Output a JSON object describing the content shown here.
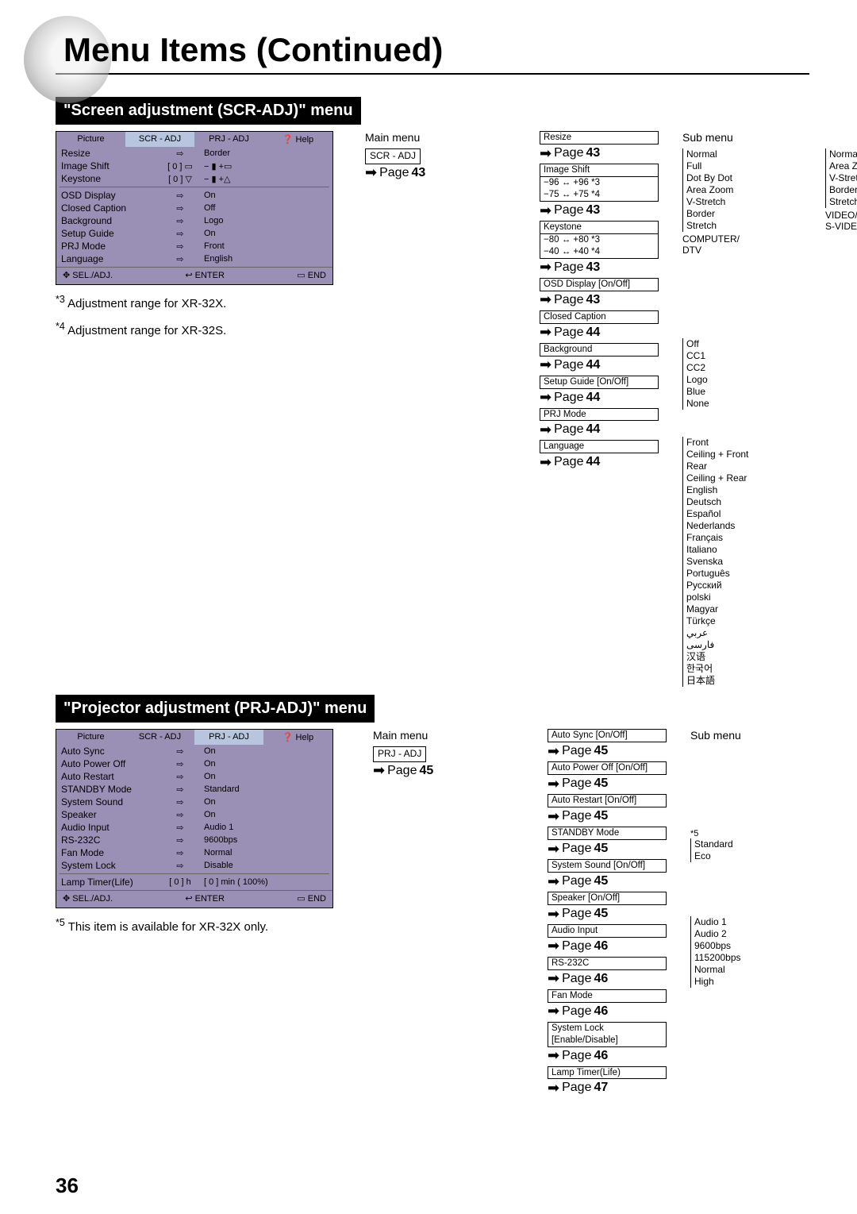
{
  "page_number": "36",
  "title": "Menu Items (Continued)",
  "sections": [
    {
      "bar": "\"Screen adjustment (SCR-ADJ)\" menu",
      "osd": {
        "tabs": [
          "Picture",
          "SCR - ADJ",
          "PRJ - ADJ",
          "❓ Help"
        ],
        "active_tab": 1,
        "rows": [
          {
            "lbl": "Resize",
            "mid": "⇨",
            "val": "Border"
          },
          {
            "lbl": "Image Shift",
            "mid": "[     0 ] ▭",
            "val": "−  ▮  +▭"
          },
          {
            "lbl": "Keystone",
            "mid": "[     0 ] ▽",
            "val": "−  ▮  +△"
          },
          {
            "lbl": "_sep"
          },
          {
            "lbl": "OSD Display",
            "mid": "⇨",
            "val": "On"
          },
          {
            "lbl": "Closed Caption",
            "mid": "⇨",
            "val": "Off"
          },
          {
            "lbl": "Background",
            "mid": "⇨",
            "val": "Logo"
          },
          {
            "lbl": "Setup Guide",
            "mid": "⇨",
            "val": "On"
          },
          {
            "lbl": "PRJ Mode",
            "mid": "⇨",
            "val": "Front"
          },
          {
            "lbl": "Language",
            "mid": "⇨",
            "val": "English"
          }
        ],
        "foot": [
          "✥ SEL./ADJ.",
          "↩ ENTER",
          "▭ END"
        ]
      },
      "footnotes": [
        "*3 Adjustment range for XR-32X.",
        "*4 Adjustment range for XR-32S."
      ],
      "main_menu_label": "Main menu",
      "sub_menu_label": "Sub menu",
      "root_label": "SCR - ADJ",
      "root_page": "Page 43",
      "items": [
        {
          "label": "Resize",
          "page": "Page 43",
          "opts": [
            "Normal",
            "Full",
            "Dot By Dot",
            "Area Zoom",
            "V-Stretch",
            "Border",
            "Stretch"
          ],
          "side": "COMPUTER/\nDTV",
          "opts2": [
            "Normal",
            "Area Zoom",
            "V-Stretch",
            "Border",
            "Stretch"
          ],
          "side2": "VIDEO/\nS-VIDEO"
        },
        {
          "label": "Image Shift",
          "sub": [
            "−96 ↔ +96 *3",
            "−75 ↔ +75 *4"
          ],
          "page": "Page 43"
        },
        {
          "label": "Keystone",
          "sub": [
            "−80 ↔ +80 *3",
            "−40 ↔ +40 *4"
          ],
          "page": "Page 43"
        },
        {
          "label": "OSD Display [On/Off]",
          "page": "Page 43"
        },
        {
          "label": "Closed Caption",
          "page": "Page 44",
          "opts": [
            "Off",
            "CC1",
            "CC2"
          ]
        },
        {
          "label": "Background",
          "page": "Page 44",
          "opts": [
            "Logo",
            "Blue",
            "None"
          ]
        },
        {
          "label": "Setup Guide [On/Off]",
          "page": "Page 44"
        },
        {
          "label": "PRJ Mode",
          "page": "Page 44",
          "opts": [
            "Front",
            "Ceiling + Front",
            "Rear",
            "Ceiling + Rear"
          ]
        },
        {
          "label": "Language",
          "page": "Page 44",
          "opts": [
            "English",
            "Deutsch",
            "Español",
            "Nederlands",
            "Français",
            "Italiano",
            "Svenska",
            "Português",
            "Русский",
            "polski",
            "Magyar",
            "Türkçe",
            "عربي",
            "فارسی",
            "汉语",
            "한국어",
            "日本語"
          ]
        }
      ]
    },
    {
      "bar": "\"Projector adjustment (PRJ-ADJ)\" menu",
      "osd": {
        "tabs": [
          "Picture",
          "SCR - ADJ",
          "PRJ - ADJ",
          "❓ Help"
        ],
        "active_tab": 2,
        "rows": [
          {
            "lbl": "Auto Sync",
            "mid": "⇨",
            "val": "On"
          },
          {
            "lbl": "Auto Power Off",
            "mid": "⇨",
            "val": "On"
          },
          {
            "lbl": "Auto Restart",
            "mid": "⇨",
            "val": "On"
          },
          {
            "lbl": "STANDBY Mode",
            "mid": "⇨",
            "val": "Standard"
          },
          {
            "lbl": "System Sound",
            "mid": "⇨",
            "val": "On"
          },
          {
            "lbl": "Speaker",
            "mid": "⇨",
            "val": "On"
          },
          {
            "lbl": "Audio Input",
            "mid": "⇨",
            "val": "Audio 1"
          },
          {
            "lbl": "RS-232C",
            "mid": "⇨",
            "val": "9600bps"
          },
          {
            "lbl": "Fan Mode",
            "mid": "⇨",
            "val": "Normal"
          },
          {
            "lbl": "System Lock",
            "mid": "⇨",
            "val": "Disable"
          },
          {
            "lbl": "_sep"
          },
          {
            "lbl": "Lamp Timer(Life)",
            "mid": "[       0 ] h",
            "val": "[       0 ] min ( 100%)"
          }
        ],
        "foot": [
          "✥ SEL./ADJ.",
          "↩ ENTER",
          "▭ END"
        ]
      },
      "footnotes": [
        "*5 This item is available for XR-32X only."
      ],
      "main_menu_label": "Main menu",
      "sub_menu_label": "Sub menu",
      "root_label": "PRJ - ADJ",
      "root_page": "Page 45",
      "items": [
        {
          "label": "Auto Sync [On/Off]",
          "page": "Page 45"
        },
        {
          "label": "Auto Power Off [On/Off]",
          "page": "Page 45"
        },
        {
          "label": "Auto Restart [On/Off]",
          "page": "Page 45"
        },
        {
          "label": "STANDBY Mode",
          "page": "Page 45",
          "opts": [
            "Standard",
            "Eco"
          ]
        },
        {
          "label": "System Sound [On/Off]",
          "page": "Page 45"
        },
        {
          "label": "Speaker [On/Off]",
          "page": "Page 45"
        },
        {
          "label": "Audio Input",
          "page": "Page 46",
          "star": "*5",
          "opts": [
            "Audio 1",
            "Audio 2"
          ]
        },
        {
          "label": "RS-232C",
          "page": "Page 46",
          "opts": [
            "9600bps",
            "115200bps"
          ]
        },
        {
          "label": "Fan Mode",
          "page": "Page 46",
          "opts": [
            "Normal",
            "High"
          ]
        },
        {
          "label": "System Lock\n[Enable/Disable]",
          "page": "Page 46"
        },
        {
          "label": "Lamp Timer(Life)",
          "page": "Page 47"
        }
      ]
    }
  ]
}
